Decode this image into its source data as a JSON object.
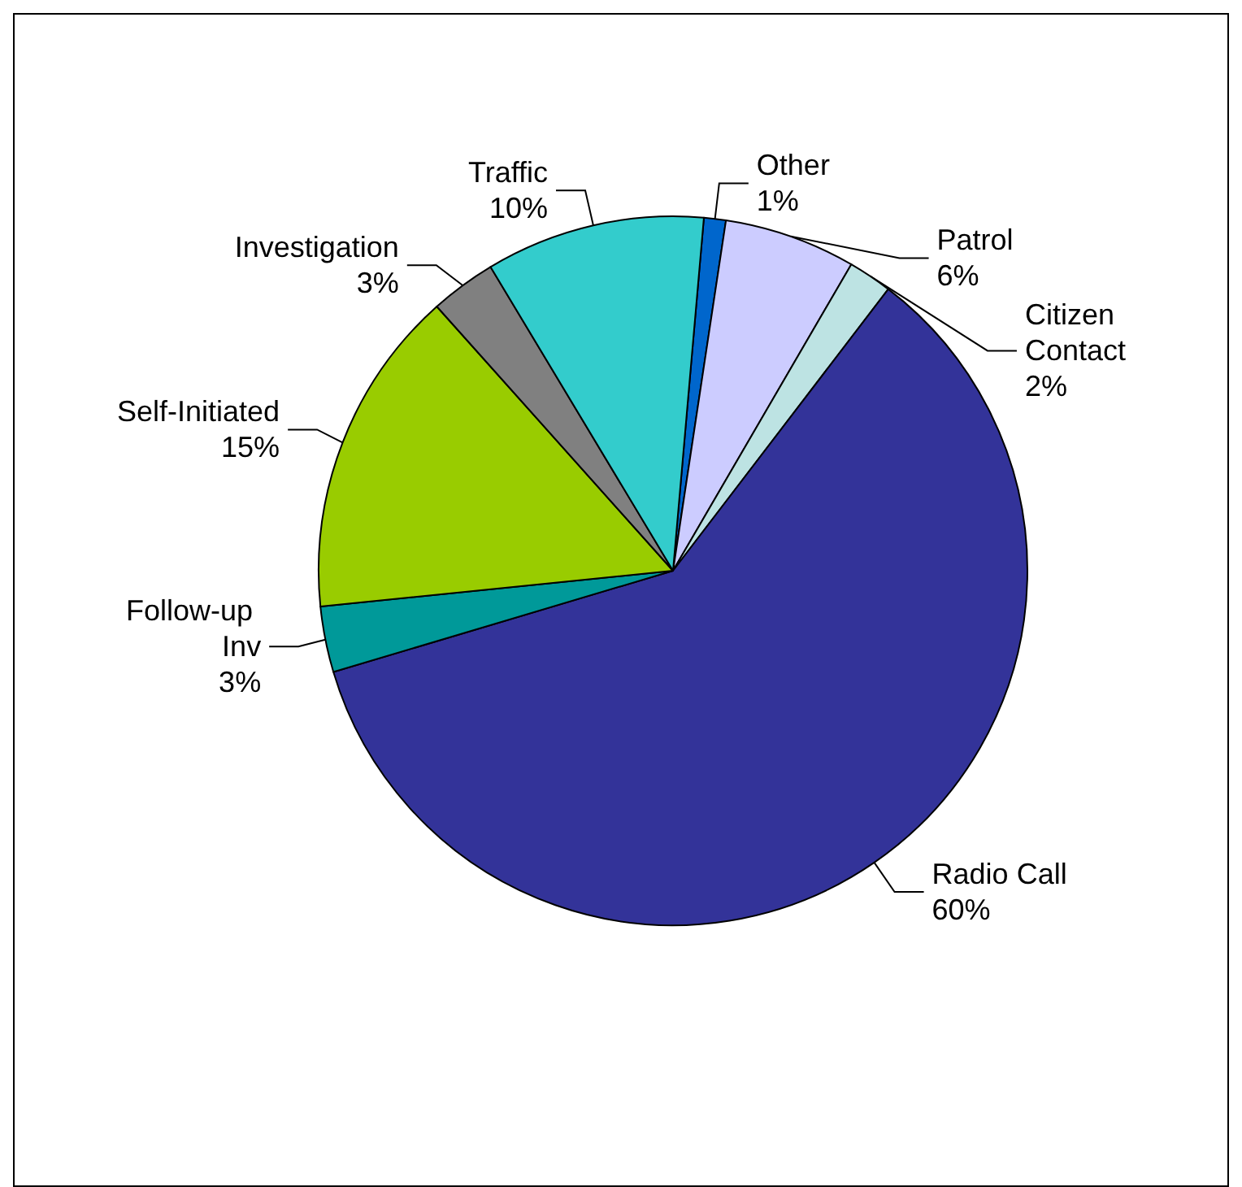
{
  "chart_data": {
    "type": "pie",
    "categories": [
      "Other",
      "Patrol",
      "Citizen Contact",
      "Radio Call",
      "Follow-up Inv",
      "Self-Initiated",
      "Investigation",
      "Traffic"
    ],
    "values": [
      1,
      6,
      2,
      60,
      3,
      15,
      3,
      10
    ],
    "value_labels": [
      "1%",
      "6%",
      "2%",
      "60%",
      "3%",
      "15%",
      "3%",
      "10%"
    ],
    "colors": [
      "#0066cc",
      "#ccccff",
      "#bde3e3",
      "#333399",
      "#009999",
      "#99cc00",
      "#808080",
      "#33cccc"
    ],
    "legend": false
  }
}
